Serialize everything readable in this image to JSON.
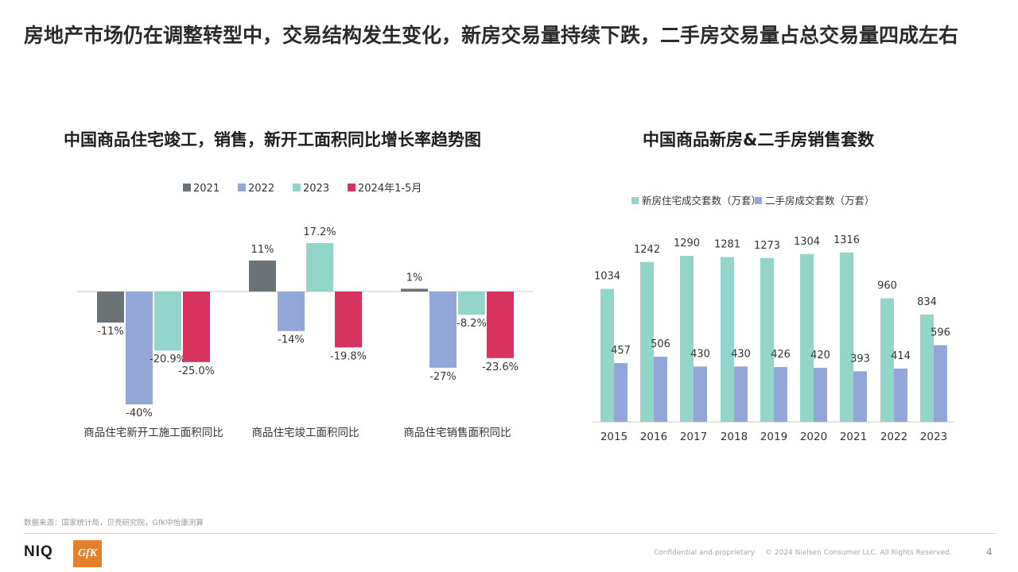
{
  "page": {
    "title": "房地产市场仍在调整转型中，交易结构发生变化，新房交易量持续下跌，二手房交易量占总交易量四成左右",
    "source": "数据来源：国家统计局，贝壳研究院，GfK中怡康测算",
    "footer_confidential": "Confidential and proprietary",
    "footer_copyright": "© 2024 Nielsen Consumer LLC. All Rights Reserved.",
    "page_number": "4",
    "logo_niq": "NIQ",
    "logo_gfk": "GfK"
  },
  "chart_data": [
    {
      "type": "bar",
      "title": "中国商品住宅竣工，销售，新开工面积同比增长率趋势图",
      "categories": [
        "商品住宅新开工施工面积同比",
        "商品住宅竣工面积同比",
        "商品住宅销售面积同比"
      ],
      "series": [
        {
          "name": "2021",
          "color": "#6b7378",
          "values": [
            -11,
            11,
            1
          ],
          "labels": [
            "-11%",
            "11%",
            "1%"
          ]
        },
        {
          "name": "2022",
          "color": "#93a6d8",
          "values": [
            -40,
            -14,
            -27
          ],
          "labels": [
            "-40%",
            "-14%",
            "-27%"
          ]
        },
        {
          "name": "2023",
          "color": "#93d6c9",
          "values": [
            -20.9,
            17.2,
            -8.2
          ],
          "labels": [
            "-20.9%",
            "17.2%",
            "-8.2%"
          ]
        },
        {
          "name": "2024年1-5月",
          "color": "#d6335e",
          "values": [
            -25.0,
            -19.8,
            -23.6
          ],
          "labels": [
            "-25.0%",
            "-19.8%",
            "-23.6%"
          ]
        }
      ],
      "legend": "top",
      "grid": false
    },
    {
      "type": "bar",
      "title": "中国商品新房&二手房销售套数",
      "categories": [
        "2015",
        "2016",
        "2017",
        "2018",
        "2019",
        "2020",
        "2021",
        "2022",
        "2023"
      ],
      "series": [
        {
          "name": "新房住宅成交套数（万套）",
          "color": "#93d6c9",
          "values": [
            1034,
            1242,
            1290,
            1281,
            1273,
            1304,
            1316,
            960,
            834
          ]
        },
        {
          "name": "二手房成交套数（万套）",
          "color": "#93a6d8",
          "values": [
            457,
            506,
            430,
            430,
            426,
            420,
            393,
            414,
            596
          ]
        }
      ],
      "legend": "top",
      "grid": false
    }
  ]
}
